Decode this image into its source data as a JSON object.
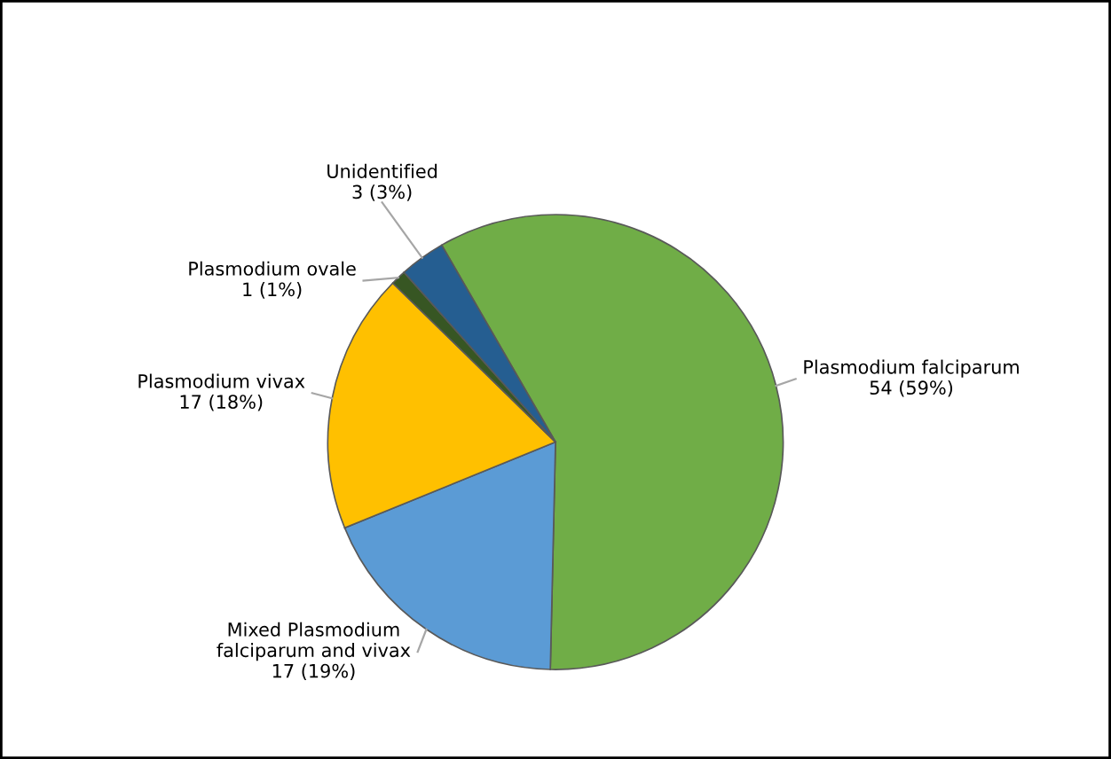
{
  "chart_data": {
    "type": "pie",
    "categories": [
      "Plasmodium falciparum",
      "Mixed Plasmodium\nfalciparum and vivax",
      "Plasmodium vivax",
      "Plasmodium ovale",
      "Unidentified"
    ],
    "values": [
      54,
      17,
      17,
      1,
      3
    ],
    "value_labels": [
      "54 (59%)",
      "17 (19%)",
      "17 (18%)",
      "1 (1%)",
      "3 (3%)"
    ],
    "colors": [
      "#70ad47",
      "#5b9bd5",
      "#ffc000",
      "#375623",
      "#255e91"
    ],
    "legend": false
  }
}
